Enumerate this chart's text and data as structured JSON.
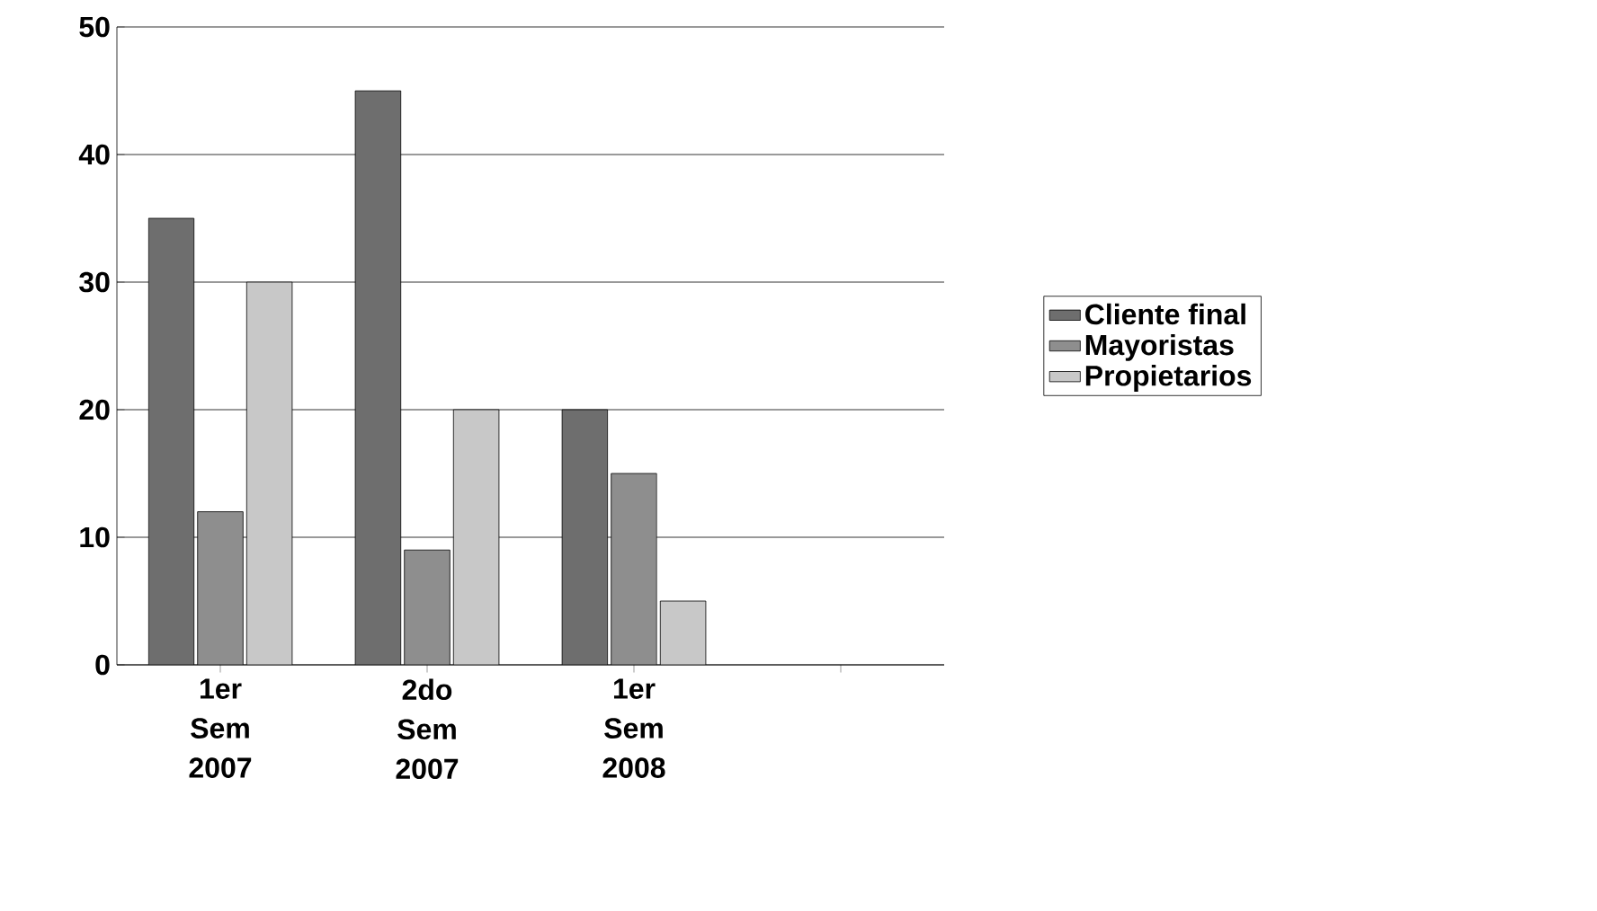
{
  "chart_data": {
    "type": "bar",
    "categories": [
      "1er Sem 2007",
      "2do Sem 2007",
      "1er Sem 2008",
      null
    ],
    "series": [
      {
        "name": "Cliente final",
        "color": "#6e6e6e",
        "values": [
          35,
          45,
          20,
          null
        ]
      },
      {
        "name": "Mayoristas",
        "color": "#8e8e8e",
        "values": [
          12,
          9,
          15,
          null
        ]
      },
      {
        "name": "Propietarios",
        "color": "#c8c8c8",
        "values": [
          30,
          20,
          5,
          null
        ]
      }
    ],
    "ylim": [
      0,
      50
    ],
    "yticks": [
      0,
      10,
      20,
      30,
      40,
      50
    ],
    "grid": "y",
    "legend": "right"
  }
}
